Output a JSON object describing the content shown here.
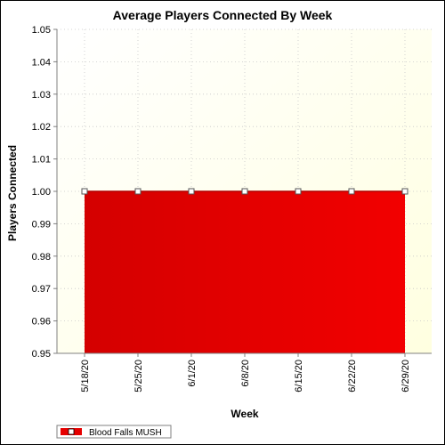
{
  "chart_data": {
    "type": "area",
    "title": "Average Players Connected By Week",
    "xlabel": "Week",
    "ylabel": "Players Connected",
    "categories": [
      "5/18/20",
      "5/25/20",
      "6/1/20",
      "6/8/20",
      "6/15/20",
      "6/22/20",
      "6/29/20"
    ],
    "series": [
      {
        "name": "Blood Falls MUSH",
        "values": [
          1.0,
          1.0,
          1.0,
          1.0,
          1.0,
          1.0,
          1.0
        ],
        "color": "#e60000"
      }
    ],
    "ylim": [
      0.95,
      1.05
    ],
    "yticks": [
      "0.95",
      "0.96",
      "0.97",
      "0.98",
      "0.99",
      "1.00",
      "1.01",
      "1.02",
      "1.03",
      "1.04",
      "1.05"
    ],
    "grid": true,
    "legend_position": "bottom-left",
    "plot_background": [
      "#ffffff",
      "#ffffe0"
    ]
  }
}
